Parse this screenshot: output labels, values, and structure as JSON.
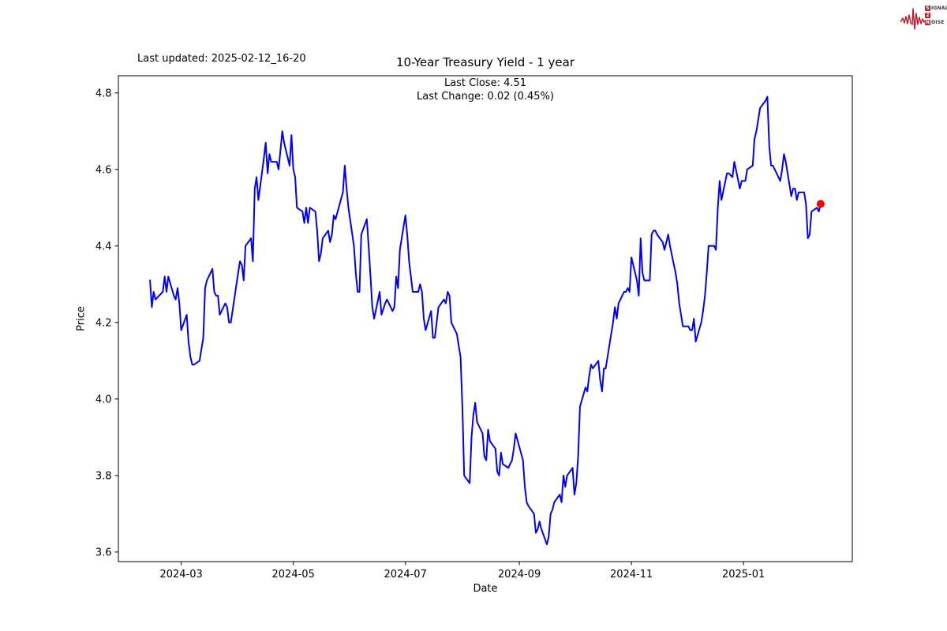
{
  "header": {
    "last_updated": "Last updated: 2025-02-12_16-20",
    "title": "10-Year Treasury Yield - 1 year",
    "subtitle_line1": "Last Close: 4.51",
    "subtitle_line2": "Last Change: 0.02 (0.45%)"
  },
  "logo": {
    "row1_boxed": "S",
    "row1_rest": "IGNAL",
    "row2_boxed": "2",
    "row2_rest": "",
    "row3_boxed": "N",
    "row3_rest": "OISE",
    "accent_color": "#b5222d"
  },
  "chart_data": {
    "type": "line",
    "title": "10-Year Treasury Yield - 1 year",
    "xlabel": "Date",
    "ylabel": "Price",
    "last_close": 4.51,
    "last_change": 0.02,
    "last_change_pct": "0.45%",
    "line_color": "#0000ff",
    "last_point_color": "#ff0000",
    "grid": false,
    "legend": "none",
    "ylim": [
      3.575,
      4.845
    ],
    "xlim_days": [
      -17.2,
      382.2
    ],
    "y_ticks": [
      3.6,
      3.8,
      4.0,
      4.2,
      4.4,
      4.6,
      4.8
    ],
    "x_ticks": [
      {
        "date": "2024-03-01",
        "label": "2024-03"
      },
      {
        "date": "2024-05-01",
        "label": "2024-05"
      },
      {
        "date": "2024-07-01",
        "label": "2024-07"
      },
      {
        "date": "2024-09-01",
        "label": "2024-09"
      },
      {
        "date": "2024-11-01",
        "label": "2024-11"
      },
      {
        "date": "2025-01-01",
        "label": "2025-01"
      }
    ],
    "series": [
      {
        "name": "10-Year Treasury Yield",
        "dates": [
          "2024-02-13",
          "2024-02-14",
          "2024-02-15",
          "2024-02-16",
          "2024-02-20",
          "2024-02-21",
          "2024-02-22",
          "2024-02-23",
          "2024-02-26",
          "2024-02-27",
          "2024-02-28",
          "2024-02-29",
          "2024-03-01",
          "2024-03-04",
          "2024-03-05",
          "2024-03-06",
          "2024-03-07",
          "2024-03-08",
          "2024-03-11",
          "2024-03-12",
          "2024-03-13",
          "2024-03-14",
          "2024-03-15",
          "2024-03-18",
          "2024-03-19",
          "2024-03-20",
          "2024-03-21",
          "2024-03-22",
          "2024-03-25",
          "2024-03-26",
          "2024-03-27",
          "2024-03-28",
          "2024-04-01",
          "2024-04-02",
          "2024-04-03",
          "2024-04-04",
          "2024-04-05",
          "2024-04-08",
          "2024-04-09",
          "2024-04-10",
          "2024-04-11",
          "2024-04-12",
          "2024-04-15",
          "2024-04-16",
          "2024-04-17",
          "2024-04-18",
          "2024-04-19",
          "2024-04-22",
          "2024-04-23",
          "2024-04-24",
          "2024-04-25",
          "2024-04-26",
          "2024-04-29",
          "2024-04-30",
          "2024-05-01",
          "2024-05-02",
          "2024-05-03",
          "2024-05-06",
          "2024-05-07",
          "2024-05-08",
          "2024-05-09",
          "2024-05-10",
          "2024-05-13",
          "2024-05-14",
          "2024-05-15",
          "2024-05-16",
          "2024-05-17",
          "2024-05-20",
          "2024-05-21",
          "2024-05-22",
          "2024-05-23",
          "2024-05-24",
          "2024-05-28",
          "2024-05-29",
          "2024-05-30",
          "2024-05-31",
          "2024-06-03",
          "2024-06-04",
          "2024-06-05",
          "2024-06-06",
          "2024-06-07",
          "2024-06-10",
          "2024-06-11",
          "2024-06-12",
          "2024-06-13",
          "2024-06-14",
          "2024-06-17",
          "2024-06-18",
          "2024-06-20",
          "2024-06-21",
          "2024-06-24",
          "2024-06-25",
          "2024-06-26",
          "2024-06-27",
          "2024-06-28",
          "2024-07-01",
          "2024-07-02",
          "2024-07-03",
          "2024-07-05",
          "2024-07-08",
          "2024-07-09",
          "2024-07-10",
          "2024-07-11",
          "2024-07-12",
          "2024-07-15",
          "2024-07-16",
          "2024-07-17",
          "2024-07-18",
          "2024-07-19",
          "2024-07-22",
          "2024-07-23",
          "2024-07-24",
          "2024-07-25",
          "2024-07-26",
          "2024-07-29",
          "2024-07-30",
          "2024-07-31",
          "2024-08-01",
          "2024-08-02",
          "2024-08-05",
          "2024-08-06",
          "2024-08-07",
          "2024-08-08",
          "2024-08-09",
          "2024-08-12",
          "2024-08-13",
          "2024-08-14",
          "2024-08-15",
          "2024-08-16",
          "2024-08-19",
          "2024-08-20",
          "2024-08-21",
          "2024-08-22",
          "2024-08-23",
          "2024-08-26",
          "2024-08-27",
          "2024-08-28",
          "2024-08-29",
          "2024-08-30",
          "2024-09-03",
          "2024-09-04",
          "2024-09-05",
          "2024-09-06",
          "2024-09-09",
          "2024-09-10",
          "2024-09-11",
          "2024-09-12",
          "2024-09-13",
          "2024-09-16",
          "2024-09-17",
          "2024-09-18",
          "2024-09-19",
          "2024-09-20",
          "2024-09-23",
          "2024-09-24",
          "2024-09-25",
          "2024-09-26",
          "2024-09-27",
          "2024-09-30",
          "2024-10-01",
          "2024-10-02",
          "2024-10-03",
          "2024-10-04",
          "2024-10-07",
          "2024-10-08",
          "2024-10-09",
          "2024-10-10",
          "2024-10-11",
          "2024-10-14",
          "2024-10-15",
          "2024-10-16",
          "2024-10-17",
          "2024-10-18",
          "2024-10-21",
          "2024-10-22",
          "2024-10-23",
          "2024-10-24",
          "2024-10-25",
          "2024-10-28",
          "2024-10-29",
          "2024-10-30",
          "2024-10-31",
          "2024-11-01",
          "2024-11-04",
          "2024-11-05",
          "2024-11-06",
          "2024-11-07",
          "2024-11-08",
          "2024-11-11",
          "2024-11-12",
          "2024-11-13",
          "2024-11-14",
          "2024-11-15",
          "2024-11-18",
          "2024-11-19",
          "2024-11-20",
          "2024-11-21",
          "2024-11-22",
          "2024-11-25",
          "2024-11-26",
          "2024-11-27",
          "2024-11-29",
          "2024-12-02",
          "2024-12-03",
          "2024-12-04",
          "2024-12-05",
          "2024-12-06",
          "2024-12-09",
          "2024-12-10",
          "2024-12-11",
          "2024-12-12",
          "2024-12-13",
          "2024-12-16",
          "2024-12-17",
          "2024-12-18",
          "2024-12-19",
          "2024-12-20",
          "2024-12-23",
          "2024-12-24",
          "2024-12-26",
          "2024-12-27",
          "2024-12-30",
          "2024-12-31",
          "2025-01-02",
          "2025-01-03",
          "2025-01-06",
          "2025-01-07",
          "2025-01-08",
          "2025-01-10",
          "2025-01-13",
          "2025-01-14",
          "2025-01-15",
          "2025-01-16",
          "2025-01-17",
          "2025-01-21",
          "2025-01-22",
          "2025-01-23",
          "2025-01-24",
          "2025-01-27",
          "2025-01-28",
          "2025-01-29",
          "2025-01-30",
          "2025-01-31",
          "2025-02-03",
          "2025-02-04",
          "2025-02-05",
          "2025-02-06",
          "2025-02-07",
          "2025-02-10",
          "2025-02-11",
          "2025-02-12"
        ],
        "values": [
          4.31,
          4.24,
          4.28,
          4.26,
          4.28,
          4.32,
          4.28,
          4.32,
          4.27,
          4.26,
          4.29,
          4.25,
          4.18,
          4.22,
          4.15,
          4.11,
          4.09,
          4.09,
          4.1,
          4.13,
          4.16,
          4.29,
          4.31,
          4.34,
          4.28,
          4.27,
          4.27,
          4.22,
          4.25,
          4.24,
          4.2,
          4.2,
          4.33,
          4.36,
          4.35,
          4.31,
          4.4,
          4.42,
          4.36,
          4.55,
          4.58,
          4.52,
          4.63,
          4.67,
          4.59,
          4.64,
          4.62,
          4.62,
          4.6,
          4.65,
          4.7,
          4.67,
          4.61,
          4.69,
          4.6,
          4.58,
          4.5,
          4.49,
          4.46,
          4.5,
          4.46,
          4.5,
          4.49,
          4.44,
          4.36,
          4.38,
          4.42,
          4.44,
          4.41,
          4.43,
          4.48,
          4.47,
          4.54,
          4.61,
          4.55,
          4.5,
          4.4,
          4.33,
          4.28,
          4.28,
          4.43,
          4.47,
          4.4,
          4.32,
          4.24,
          4.21,
          4.28,
          4.22,
          4.25,
          4.26,
          4.23,
          4.24,
          4.32,
          4.29,
          4.39,
          4.48,
          4.43,
          4.36,
          4.28,
          4.28,
          4.3,
          4.28,
          4.21,
          4.18,
          4.23,
          4.16,
          4.16,
          4.2,
          4.24,
          4.26,
          4.25,
          4.28,
          4.27,
          4.2,
          4.17,
          4.14,
          4.11,
          3.98,
          3.8,
          3.78,
          3.9,
          3.96,
          3.99,
          3.94,
          3.91,
          3.85,
          3.84,
          3.92,
          3.89,
          3.87,
          3.81,
          3.8,
          3.86,
          3.83,
          3.82,
          3.83,
          3.84,
          3.87,
          3.91,
          3.84,
          3.77,
          3.73,
          3.72,
          3.7,
          3.65,
          3.66,
          3.68,
          3.66,
          3.62,
          3.64,
          3.7,
          3.71,
          3.73,
          3.75,
          3.73,
          3.8,
          3.77,
          3.8,
          3.82,
          3.75,
          3.78,
          3.85,
          3.98,
          4.03,
          4.02,
          4.06,
          4.09,
          4.08,
          4.1,
          4.05,
          4.02,
          4.08,
          4.08,
          4.17,
          4.2,
          4.24,
          4.21,
          4.25,
          4.28,
          4.28,
          4.29,
          4.28,
          4.37,
          4.31,
          4.27,
          4.42,
          4.33,
          4.31,
          4.31,
          4.43,
          4.44,
          4.44,
          4.43,
          4.41,
          4.39,
          4.41,
          4.43,
          4.4,
          4.33,
          4.3,
          4.25,
          4.19,
          4.19,
          4.18,
          4.18,
          4.21,
          4.15,
          4.2,
          4.23,
          4.27,
          4.33,
          4.4,
          4.4,
          4.39,
          4.5,
          4.57,
          4.52,
          4.59,
          4.59,
          4.58,
          4.62,
          4.55,
          4.57,
          4.57,
          4.6,
          4.61,
          4.68,
          4.7,
          4.76,
          4.78,
          4.79,
          4.66,
          4.61,
          4.61,
          4.57,
          4.6,
          4.64,
          4.62,
          4.53,
          4.55,
          4.55,
          4.52,
          4.54,
          4.54,
          4.51,
          4.42,
          4.43,
          4.49,
          4.5,
          4.49,
          4.51
        ]
      }
    ]
  }
}
